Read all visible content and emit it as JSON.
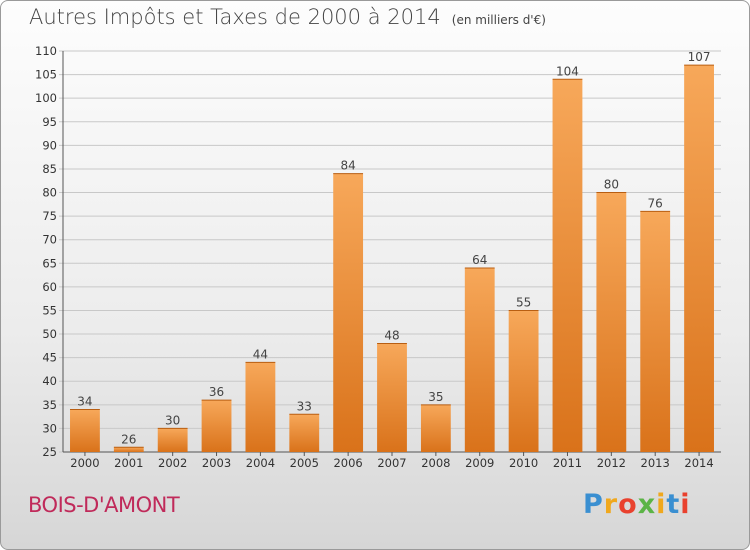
{
  "title": {
    "main": "Autres Impôts et Taxes de 2000 à 2014",
    "unit": "(en milliers d'€)"
  },
  "commune": "BOIS-D'AMONT",
  "logo": [
    "P",
    "r",
    "o",
    "x",
    "i",
    "t",
    "i"
  ],
  "colors": {
    "bar_top": "#f7a85a",
    "bar_bottom": "#d9721a",
    "commune": "#c02a5a",
    "title": "#444444"
  },
  "chart_data": {
    "type": "bar",
    "categories": [
      "2000",
      "2001",
      "2002",
      "2003",
      "2004",
      "2005",
      "2006",
      "2007",
      "2008",
      "2009",
      "2010",
      "2011",
      "2012",
      "2013",
      "2014"
    ],
    "values": [
      34,
      26,
      30,
      36,
      44,
      33,
      84,
      48,
      35,
      64,
      55,
      104,
      80,
      76,
      107
    ],
    "ylim": [
      25,
      110
    ],
    "yticks": [
      25,
      30,
      35,
      40,
      45,
      50,
      55,
      60,
      65,
      70,
      75,
      80,
      85,
      90,
      95,
      100,
      105,
      110
    ],
    "grid": true,
    "data_labels": true
  }
}
